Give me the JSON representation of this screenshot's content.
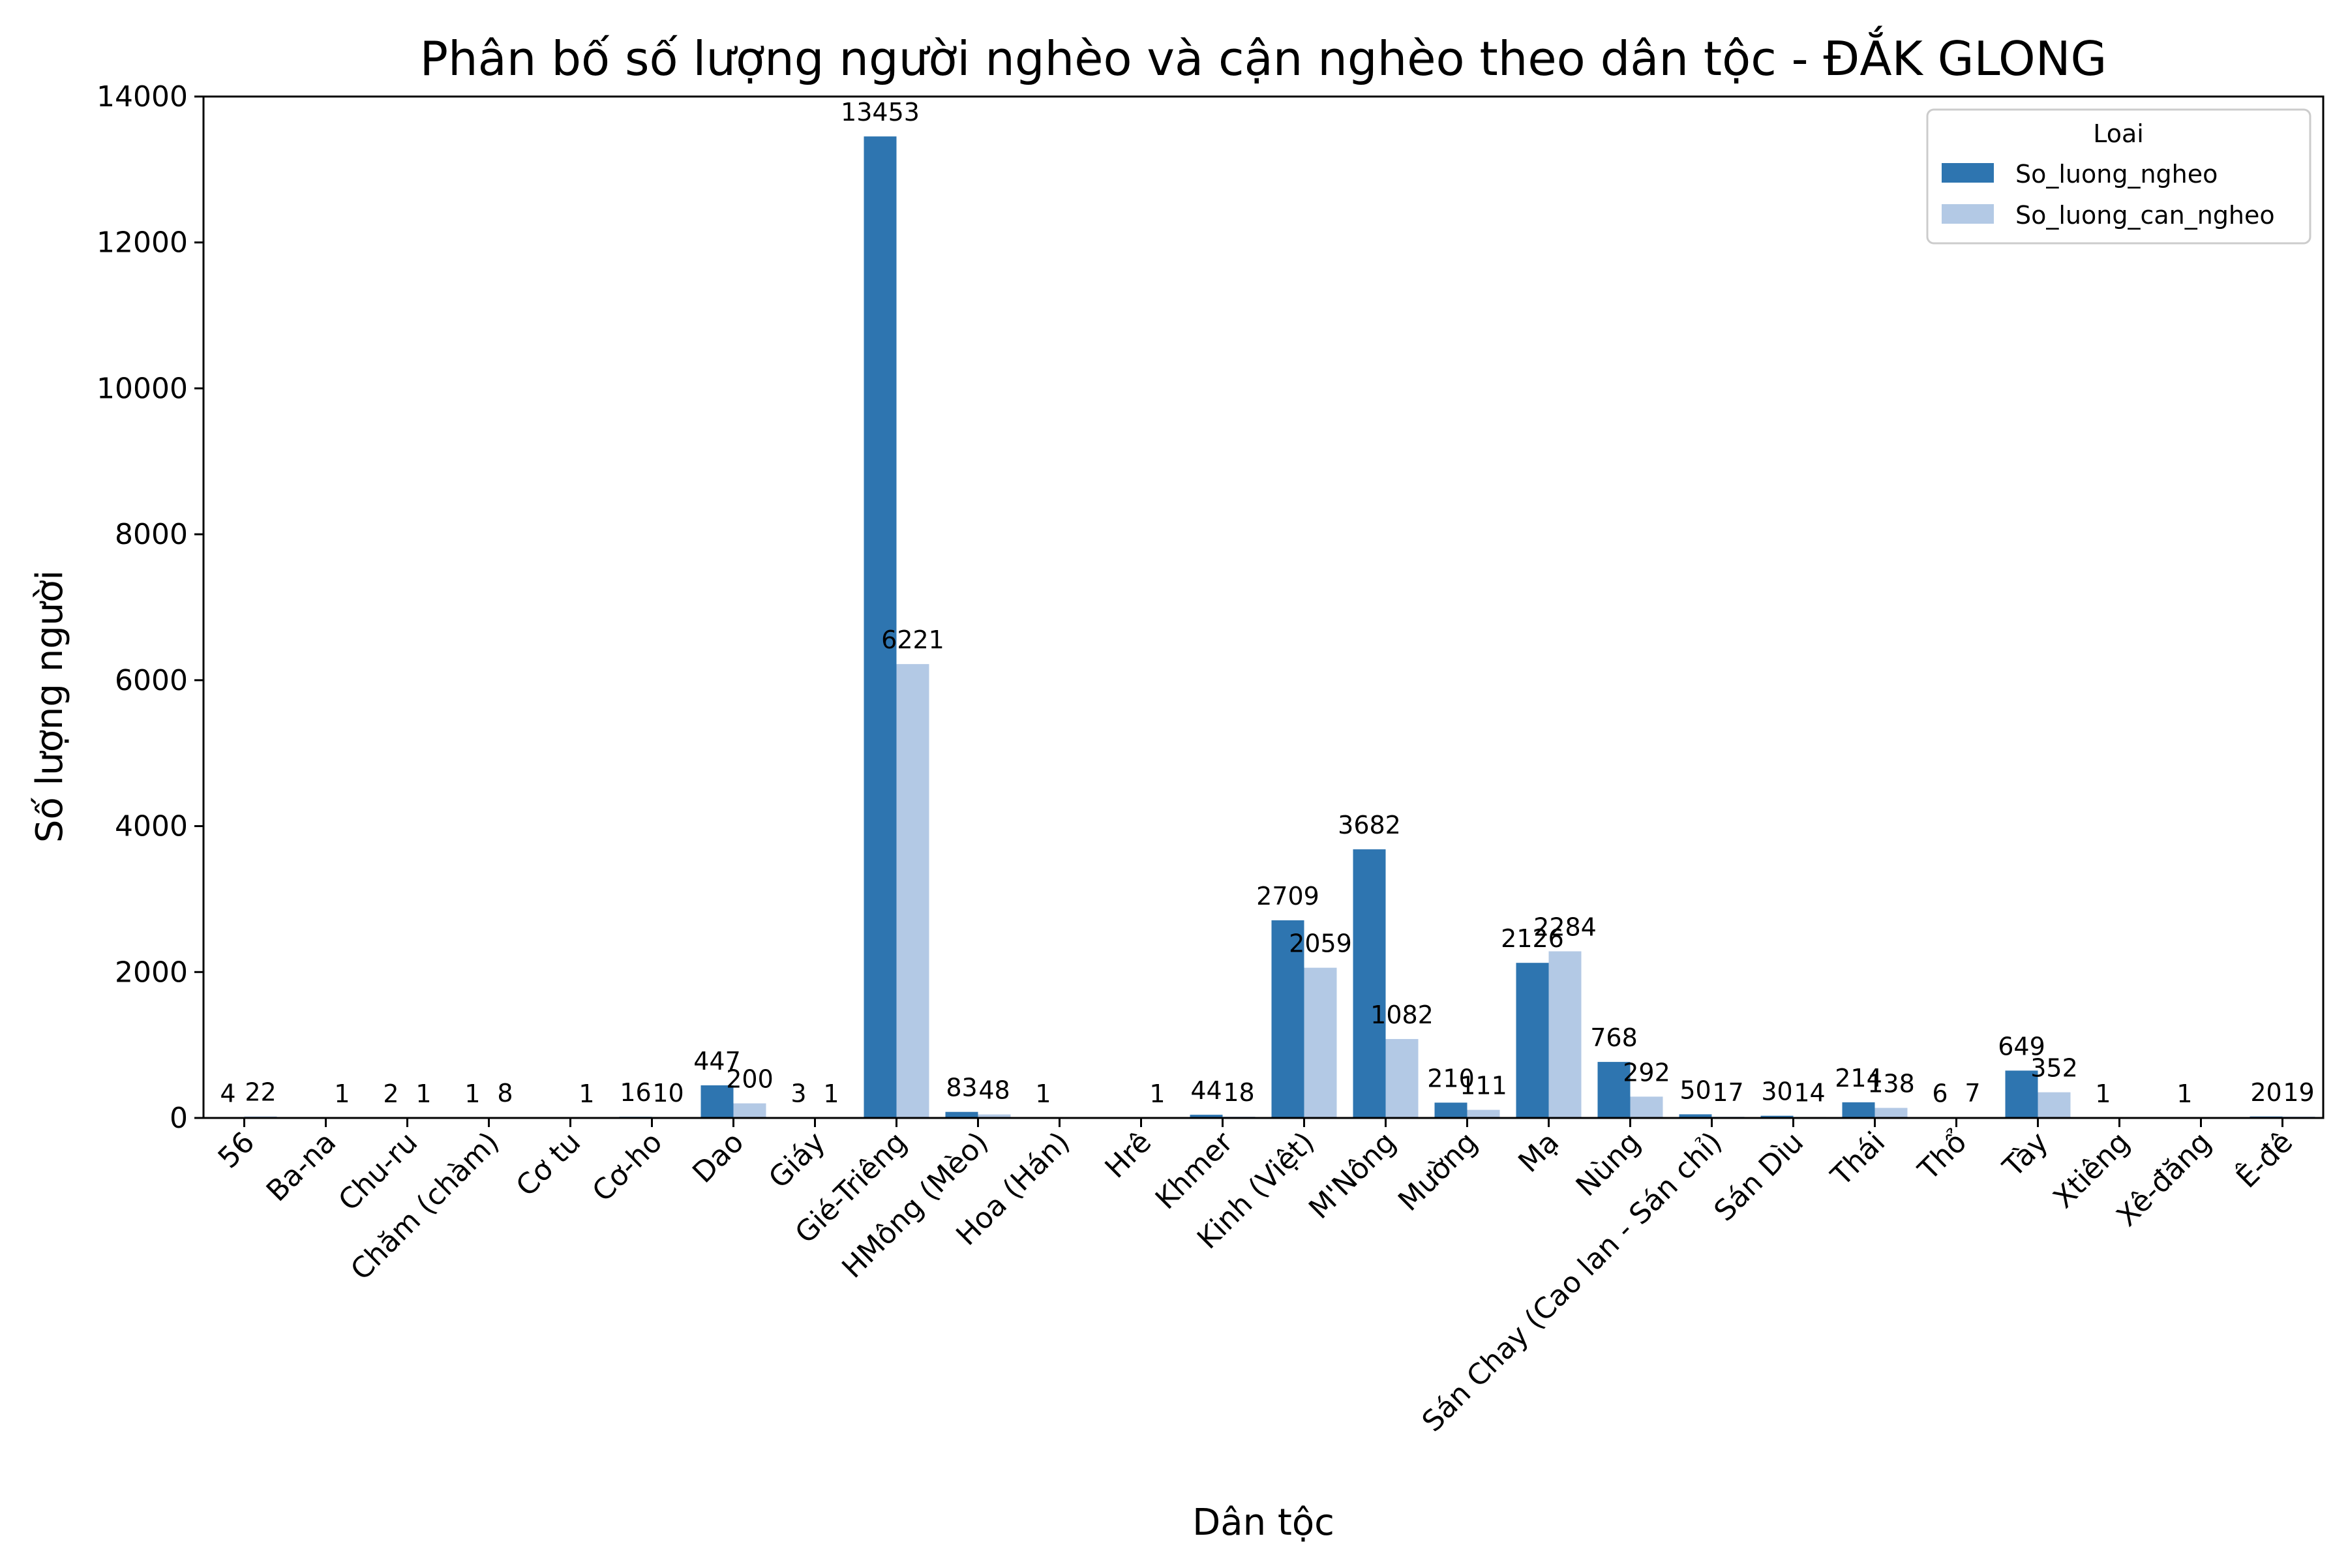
{
  "chart_data": {
    "type": "bar",
    "title": "Phân bố số lượng người nghèo và cận nghèo theo dân tộc - ĐẮK GLONG",
    "xlabel": "Dân tộc",
    "ylabel": "Số lượng người",
    "ylim": [
      0,
      14000
    ],
    "yticks": [
      "0",
      "2000",
      "4000",
      "6000",
      "8000",
      "10000",
      "12000",
      "14000"
    ],
    "grid": false,
    "legend": {
      "title": "Loai",
      "position": "top-right"
    },
    "categories": [
      "56",
      "Ba-na",
      "Chu-ru",
      "Chăm (chàm)",
      "Cơ tu",
      "Cơ-ho",
      "Dao",
      "Giáy",
      "Gié-Triêng",
      "HMông (Mèo)",
      "Hoa (Hán)",
      "Hrê",
      "Khmer",
      "Kinh (Việt)",
      "M'Nông",
      "Mường",
      "Mạ",
      "Nùng",
      "Sán Chay (Cao lan - Sán chỉ)",
      "Sán Dìu",
      "Thái",
      "Thổ",
      "Tày",
      "Xtiêng",
      "Xê-đăng",
      "Ê-đê"
    ],
    "series": [
      {
        "name": "So_luong_ngheo",
        "color": "#2e75b0",
        "values": [
          4,
          null,
          2,
          1,
          null,
          16,
          447,
          3,
          13453,
          83,
          1,
          null,
          44,
          2709,
          3682,
          210,
          2126,
          768,
          50,
          30,
          214,
          6,
          649,
          1,
          1,
          20
        ],
        "labels": [
          "4",
          "",
          "2",
          "1",
          "",
          "16",
          "447",
          "3",
          "13453",
          "83",
          "1",
          "",
          "44",
          "2709",
          "3682",
          "210",
          "2126",
          "768",
          "50",
          "30",
          "214",
          "6",
          "649",
          "1",
          "1",
          "20"
        ]
      },
      {
        "name": "So_luong_can_ngheo",
        "color": "#b3c9e5",
        "values": [
          22,
          1,
          1,
          8,
          1,
          10,
          200,
          1,
          6221,
          48,
          null,
          1,
          18,
          2059,
          1082,
          111,
          2284,
          292,
          17,
          14,
          138,
          7,
          352,
          null,
          null,
          19
        ],
        "labels": [
          "22",
          "1",
          "1",
          "8",
          "1",
          "10",
          "200",
          "1",
          "6221",
          "48",
          "",
          "1",
          "18",
          "2059",
          "1082",
          "111",
          "2284",
          "292",
          "17",
          "14",
          "138",
          "7",
          "352",
          "",
          "",
          "19"
        ]
      }
    ]
  }
}
